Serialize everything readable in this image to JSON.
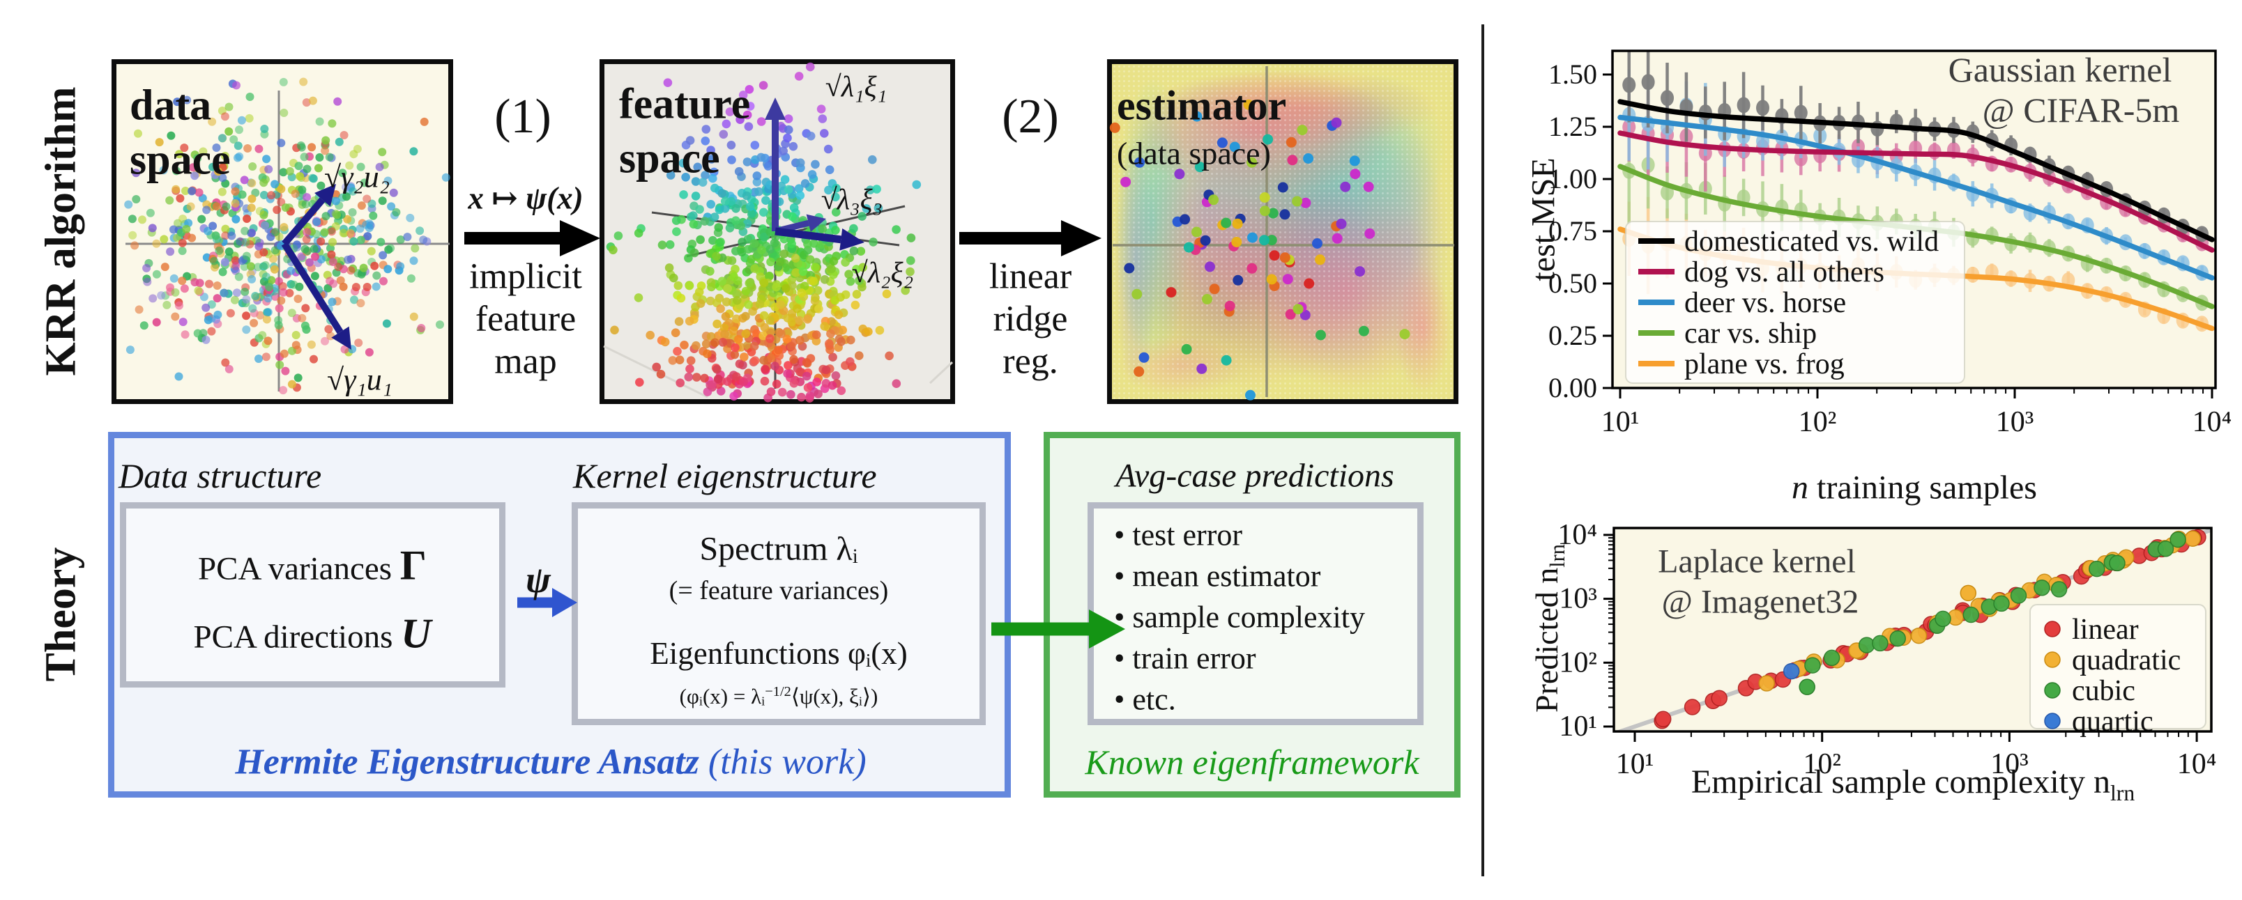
{
  "diagram": {
    "row_labels": {
      "top": "KRR algorithm",
      "bottom": "Theory"
    },
    "panels": {
      "data_space": {
        "title1": "data",
        "title2": "space",
        "u2_label": "√γ₂u₂",
        "u1_label": "√γ₁u₁"
      },
      "feature_space": {
        "title1": "feature",
        "title2": "space",
        "xi1_label": "√λ₁ξ₁",
        "xi3_label": "√λ₃ξ₃",
        "xi2_label": "√λ₂ξ₂"
      },
      "estimator": {
        "title": "estimator",
        "subtitle": "(data space)"
      }
    },
    "steps": {
      "s1": {
        "num": "(1)",
        "map": "x ↦ ψ(x)",
        "cap1": "implicit",
        "cap2": "feature",
        "cap3": "map"
      },
      "s2": {
        "num": "(2)",
        "cap1": "linear",
        "cap2": "ridge",
        "cap3": "reg."
      }
    },
    "theory": {
      "blue": {
        "header_left": "Data structure",
        "pca_var": "PCA variances",
        "pca_var_sym": "Γ",
        "pca_dir": "PCA directions",
        "pca_dir_sym": "U",
        "psi": "ψ",
        "header_right": "Kernel eigenstructure",
        "spectrum": "Spectrum λᵢ",
        "spectrum_note": "(= feature variances)",
        "eigen": "Eigenfunctions φᵢ(x)",
        "eigen_note_pre": "(φᵢ(x) = λᵢ",
        "eigen_note_sup": "−1/2",
        "eigen_note_post": "⟨ψ(x), ξᵢ⟩)",
        "footer_main": "Hermite Eigenstructure Ansatz",
        "footer_note": " (this work)"
      },
      "green": {
        "header": "Avg-case predictions",
        "bullet_glyph": "•",
        "bullets": [
          "test error",
          "mean estimator",
          "sample complexity",
          "train error",
          "etc."
        ],
        "footer": "Known eigenframework"
      }
    },
    "colors": {
      "blue_border": "#6487dd",
      "blue_fill": "#f1f4fa",
      "blue_text": "#2b57c8",
      "green_border": "#52ae52",
      "green_fill": "#eef7ed",
      "green_text": "#189a18",
      "navy_arrow": "#1d1d87",
      "blue_arrow": "#2f55cf",
      "green_arrow": "#149414",
      "data_space_bg": "#fbf8e8",
      "feature_space_bg": "#eceae5"
    }
  },
  "chart_data": [
    {
      "type": "line+scatter",
      "title": [
        "Gaussian kernel",
        "@ CIFAR-5m"
      ],
      "title_color": "#3c3c3c",
      "ylabel": "test MSE",
      "xlabel_var": "n",
      "xlabel_rest": " training samples",
      "xscale": "log",
      "xlim": [
        10,
        10000
      ],
      "ylim": [
        0,
        1.613
      ],
      "background": "#faf7e6",
      "yticks": [
        0,
        0.25,
        0.5,
        0.75,
        1.0,
        1.25,
        1.5
      ],
      "ytick_labels": [
        "0.00",
        "0.25",
        "0.50",
        "0.75",
        "1.00",
        "1.25",
        "1.50"
      ],
      "xticks_log10": [
        1,
        2,
        3,
        4
      ],
      "xtick_labels": [
        "10¹",
        "10²",
        "10³",
        "10⁴"
      ],
      "legend_position": "lower left",
      "log10_x": [
        1,
        1.25,
        1.5,
        1.75,
        2,
        2.25,
        2.5,
        2.75,
        3,
        3.25,
        3.5,
        3.75,
        4
      ],
      "series": [
        {
          "name": "domesticated vs. wild",
          "line_color": "#000000",
          "point_color": "#7d7d7d",
          "values": [
            1.37,
            1.325,
            1.3,
            1.285,
            1.272,
            1.258,
            1.242,
            1.22,
            1.13,
            1.03,
            0.93,
            0.82,
            0.71
          ]
        },
        {
          "name": "dog vs. all others",
          "line_color": "#b0124f",
          "point_color": "#d873a3",
          "values": [
            1.22,
            1.175,
            1.15,
            1.137,
            1.13,
            1.125,
            1.12,
            1.112,
            1.06,
            0.98,
            0.885,
            0.775,
            0.66
          ]
        },
        {
          "name": "deer vs. horse",
          "line_color": "#2e8bc9",
          "point_color": "#85bde4",
          "values": [
            1.295,
            1.268,
            1.24,
            1.208,
            1.16,
            1.1,
            1.03,
            0.958,
            0.88,
            0.8,
            0.713,
            0.62,
            0.527
          ]
        },
        {
          "name": "car vs. ship",
          "line_color": "#6aab35",
          "point_color": "#abd08a",
          "values": [
            1.06,
            0.968,
            0.905,
            0.858,
            0.822,
            0.793,
            0.765,
            0.738,
            0.698,
            0.645,
            0.573,
            0.487,
            0.39
          ]
        },
        {
          "name": "plane vs. frog",
          "line_color": "#f79f2e",
          "point_color": "#fac989",
          "values": [
            0.76,
            0.685,
            0.635,
            0.6,
            0.575,
            0.557,
            0.545,
            0.535,
            0.52,
            0.488,
            0.438,
            0.368,
            0.285
          ]
        }
      ],
      "points": {
        "count": 31,
        "l_start": 1.045,
        "l_step": 0.0968,
        "radius": 9.5,
        "err0": 0.2,
        "err_decay": 0.9,
        "err_min": 0.012,
        "gray_bias": 0.072,
        "color_bias": 0.018
      }
    },
    {
      "type": "scatter",
      "title": [
        "Laplace kernel",
        "@ Imagenet32"
      ],
      "title_color": "#3c3c3c",
      "ylabel_main": "Predicted n",
      "ylabel_sub": "lrn",
      "xlabel_main": "Empirical sample complexity n",
      "xlabel_sub": "lrn",
      "xscale": "log",
      "yscale": "log",
      "xlim_log10": [
        0.93,
        4.08
      ],
      "ylim_log10": [
        0.83,
        4.07
      ],
      "tick_log10": [
        1,
        2,
        3,
        4
      ],
      "tick_labels": [
        "10¹",
        "10²",
        "10³",
        "10⁴"
      ],
      "background": "#faf7e6",
      "diagonal_color": "#c4c4c4",
      "series": [
        {
          "name": "linear",
          "color": "#e33d3d",
          "edge": "#b02020",
          "n": 46,
          "log_range": [
            1.09,
            4.05
          ]
        },
        {
          "name": "quadratic",
          "color": "#f2b134",
          "edge": "#c98a10",
          "n": 27,
          "log_range": [
            1.7,
            4.06
          ]
        },
        {
          "name": "cubic",
          "color": "#45a945",
          "edge": "#2a7e2a",
          "n": 19,
          "log_range": [
            1.86,
            3.98
          ]
        },
        {
          "name": "quartic",
          "color": "#3a7bd5",
          "edge": "#2456a8",
          "n": 1,
          "log_range": [
            1.83,
            1.83
          ]
        }
      ],
      "outliers": [
        {
          "series": 1,
          "x_log10": 2.78,
          "y_log10": 3.09
        },
        {
          "series": 2,
          "x_log10": 1.92,
          "y_log10": 1.62
        }
      ],
      "legend_position": "right"
    }
  ]
}
